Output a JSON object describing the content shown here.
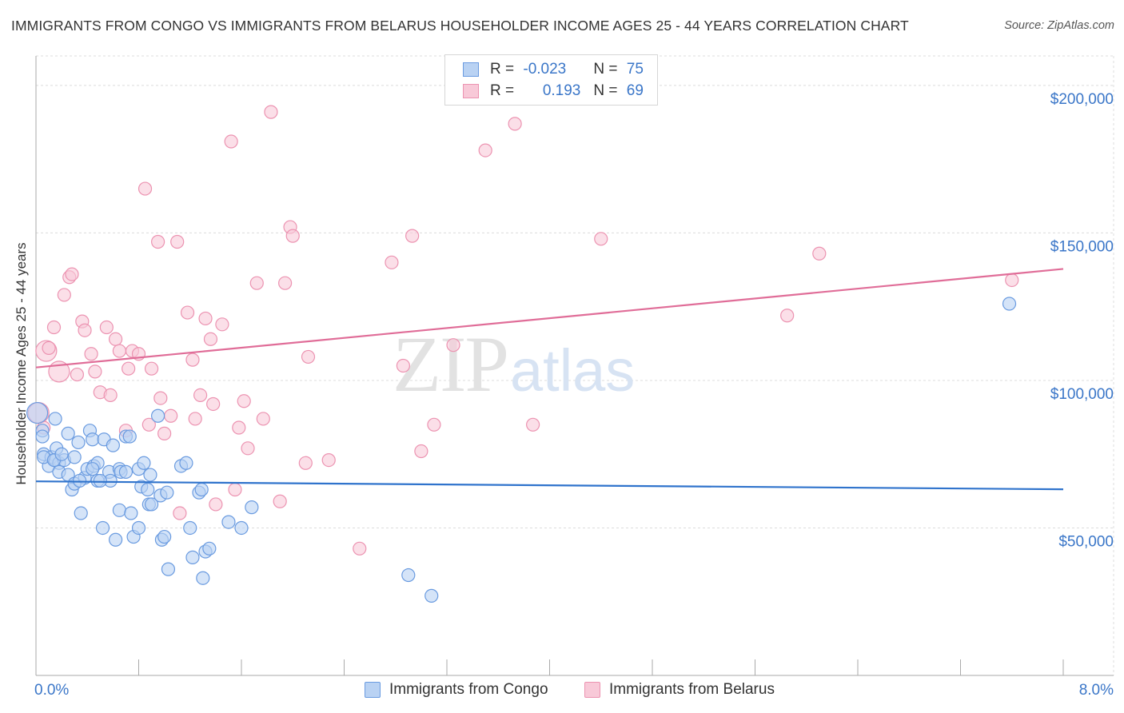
{
  "header": {
    "title": "IMMIGRANTS FROM CONGO VS IMMIGRANTS FROM BELARUS HOUSEHOLDER INCOME AGES 25 - 44 YEARS CORRELATION CHART",
    "source": "Source: ZipAtlas.com"
  },
  "watermark": {
    "zip": "ZIP",
    "atlas": "atlas"
  },
  "colors": {
    "congo_fill": "#b9d2f3",
    "congo_stroke": "#6a9be0",
    "congo_line": "#2f73cc",
    "belarus_fill": "#f8c9d8",
    "belarus_stroke": "#ec93b1",
    "belarus_line": "#e06d98",
    "axis_value": "#3a76c8",
    "grid": "#dcdcdc"
  },
  "legend": {
    "congo": {
      "r_label": "R = ",
      "r_value": "-0.023",
      "n_label": "N = ",
      "n_value": "75"
    },
    "belarus": {
      "r_label": "R = ",
      "r_value": "0.193",
      "n_label": "N = ",
      "n_value": "69"
    }
  },
  "bottom_legend": {
    "congo": "Immigrants from Congo",
    "belarus": "Immigrants from Belarus"
  },
  "chart_data": {
    "type": "scatter",
    "title": "IMMIGRANTS FROM CONGO VS IMMIGRANTS FROM BELARUS HOUSEHOLDER INCOME AGES 25 - 44 YEARS CORRELATION CHART",
    "xlabel": "",
    "ylabel": "Householder Income Ages 25 - 44 years",
    "xlim": [
      0,
      8
    ],
    "ylim": [
      0,
      210000
    ],
    "x_tick_labels": [
      "0.0%",
      "8.0%"
    ],
    "y_ticks": [
      50000,
      100000,
      150000,
      200000
    ],
    "y_tick_labels": [
      "$50,000",
      "$100,000",
      "$150,000",
      "$200,000"
    ],
    "grid": true,
    "legend_position": "top-center",
    "series": [
      {
        "name": "Immigrants from Congo",
        "R": -0.023,
        "N": 75,
        "trend": {
          "x": [
            0,
            8
          ],
          "y": [
            65800,
            63100
          ]
        },
        "points": [
          [
            0.01,
            89000,
            2
          ],
          [
            0.05,
            83000,
            1
          ],
          [
            0.05,
            81000,
            1
          ],
          [
            0.15,
            87000,
            1
          ],
          [
            0.06,
            75000,
            1
          ],
          [
            0.1,
            71000,
            1
          ],
          [
            0.12,
            74000,
            1
          ],
          [
            0.15,
            73000,
            1
          ],
          [
            0.18,
            72000,
            1
          ],
          [
            0.16,
            77000,
            1
          ],
          [
            0.18,
            69000,
            1
          ],
          [
            0.22,
            73000,
            1
          ],
          [
            0.25,
            82000,
            1
          ],
          [
            0.25,
            68000,
            1
          ],
          [
            0.28,
            63000,
            1
          ],
          [
            0.3,
            74000,
            1
          ],
          [
            0.3,
            65000,
            1
          ],
          [
            0.33,
            79000,
            1
          ],
          [
            0.35,
            55000,
            1
          ],
          [
            0.38,
            67000,
            1
          ],
          [
            0.4,
            70000,
            1
          ],
          [
            0.42,
            83000,
            1
          ],
          [
            0.44,
            80000,
            1
          ],
          [
            0.45,
            71000,
            1
          ],
          [
            0.48,
            72000,
            1
          ],
          [
            0.48,
            66000,
            1
          ],
          [
            0.52,
            50000,
            1
          ],
          [
            0.53,
            80000,
            1
          ],
          [
            0.57,
            69000,
            1
          ],
          [
            0.58,
            66000,
            1
          ],
          [
            0.6,
            78000,
            1
          ],
          [
            0.62,
            46000,
            1
          ],
          [
            0.65,
            70000,
            1
          ],
          [
            0.65,
            56000,
            1
          ],
          [
            0.66,
            69000,
            1
          ],
          [
            0.7,
            81000,
            1
          ],
          [
            0.7,
            69000,
            1
          ],
          [
            0.73,
            81000,
            1
          ],
          [
            0.74,
            55000,
            1
          ],
          [
            0.76,
            47000,
            1
          ],
          [
            0.8,
            70000,
            1
          ],
          [
            0.8,
            50000,
            1
          ],
          [
            0.82,
            64000,
            1
          ],
          [
            0.84,
            72000,
            1
          ],
          [
            0.87,
            63000,
            1
          ],
          [
            0.88,
            58000,
            1
          ],
          [
            0.89,
            68000,
            1
          ],
          [
            0.9,
            58000,
            1
          ],
          [
            0.95,
            88000,
            1
          ],
          [
            0.97,
            61000,
            1
          ],
          [
            0.98,
            46000,
            1
          ],
          [
            1.0,
            47000,
            1
          ],
          [
            1.02,
            62000,
            1
          ],
          [
            1.03,
            36000,
            1
          ],
          [
            1.13,
            71000,
            1
          ],
          [
            1.17,
            72000,
            1
          ],
          [
            1.2,
            50000,
            1
          ],
          [
            1.22,
            40000,
            1
          ],
          [
            1.27,
            62000,
            1
          ],
          [
            1.29,
            63000,
            1
          ],
          [
            1.3,
            33000,
            1
          ],
          [
            1.32,
            42000,
            1
          ],
          [
            1.35,
            43000,
            1
          ],
          [
            1.5,
            52000,
            1
          ],
          [
            1.6,
            50000,
            1
          ],
          [
            1.68,
            57000,
            1
          ],
          [
            2.9,
            34000,
            1
          ],
          [
            3.08,
            27000,
            1
          ],
          [
            7.58,
            126000,
            1
          ],
          [
            0.06,
            74000,
            1
          ],
          [
            0.14,
            73000,
            1
          ],
          [
            0.2,
            75000,
            1
          ],
          [
            0.34,
            66000,
            1
          ],
          [
            0.5,
            66000,
            1
          ],
          [
            0.44,
            70000,
            1
          ]
        ]
      },
      {
        "name": "Immigrants from Belarus",
        "R": 0.193,
        "N": 69,
        "trend": {
          "x": [
            0,
            8
          ],
          "y": [
            104400,
            137800
          ]
        },
        "points": [
          [
            0.02,
            89000,
            2
          ],
          [
            0.06,
            84000,
            1
          ],
          [
            0.08,
            110000,
            2
          ],
          [
            0.1,
            111000,
            1
          ],
          [
            0.14,
            118000,
            1
          ],
          [
            0.18,
            103000,
            2
          ],
          [
            0.22,
            129000,
            1
          ],
          [
            0.26,
            135000,
            1
          ],
          [
            0.28,
            136000,
            1
          ],
          [
            0.32,
            102000,
            1
          ],
          [
            0.36,
            120000,
            1
          ],
          [
            0.38,
            117000,
            1
          ],
          [
            0.43,
            109000,
            1
          ],
          [
            0.46,
            103000,
            1
          ],
          [
            0.5,
            96000,
            1
          ],
          [
            0.55,
            118000,
            1
          ],
          [
            0.58,
            95000,
            1
          ],
          [
            0.62,
            114000,
            1
          ],
          [
            0.65,
            110000,
            1
          ],
          [
            0.7,
            83000,
            1
          ],
          [
            0.72,
            104000,
            1
          ],
          [
            0.75,
            110000,
            1
          ],
          [
            0.8,
            109000,
            1
          ],
          [
            0.85,
            165000,
            1
          ],
          [
            0.88,
            85000,
            1
          ],
          [
            0.9,
            104000,
            1
          ],
          [
            0.95,
            147000,
            1
          ],
          [
            0.97,
            94000,
            1
          ],
          [
            1.0,
            82000,
            1
          ],
          [
            1.05,
            88000,
            1
          ],
          [
            1.1,
            147000,
            1
          ],
          [
            1.12,
            55000,
            1
          ],
          [
            1.18,
            123000,
            1
          ],
          [
            1.22,
            107000,
            1
          ],
          [
            1.24,
            87000,
            1
          ],
          [
            1.28,
            95000,
            1
          ],
          [
            1.32,
            121000,
            1
          ],
          [
            1.36,
            114000,
            1
          ],
          [
            1.38,
            92000,
            1
          ],
          [
            1.4,
            58000,
            1
          ],
          [
            1.45,
            119000,
            1
          ],
          [
            1.52,
            181000,
            1
          ],
          [
            1.55,
            63000,
            1
          ],
          [
            1.58,
            84000,
            1
          ],
          [
            1.62,
            93000,
            1
          ],
          [
            1.65,
            77000,
            1
          ],
          [
            1.72,
            133000,
            1
          ],
          [
            1.77,
            87000,
            1
          ],
          [
            1.83,
            191000,
            1
          ],
          [
            1.9,
            59000,
            1
          ],
          [
            1.94,
            133000,
            1
          ],
          [
            1.98,
            152000,
            1
          ],
          [
            2.0,
            149000,
            1
          ],
          [
            2.1,
            72000,
            1
          ],
          [
            2.12,
            108000,
            1
          ],
          [
            2.28,
            73000,
            1
          ],
          [
            2.52,
            43000,
            1
          ],
          [
            2.77,
            140000,
            1
          ],
          [
            2.86,
            105000,
            1
          ],
          [
            2.93,
            149000,
            1
          ],
          [
            3.0,
            76000,
            1
          ],
          [
            3.1,
            85000,
            1
          ],
          [
            3.25,
            112000,
            1
          ],
          [
            3.5,
            178000,
            1
          ],
          [
            3.73,
            187000,
            1
          ],
          [
            3.87,
            85000,
            1
          ],
          [
            4.4,
            148000,
            1
          ],
          [
            5.85,
            122000,
            1
          ],
          [
            6.1,
            143000,
            1
          ],
          [
            7.6,
            134000,
            1
          ]
        ]
      }
    ]
  }
}
